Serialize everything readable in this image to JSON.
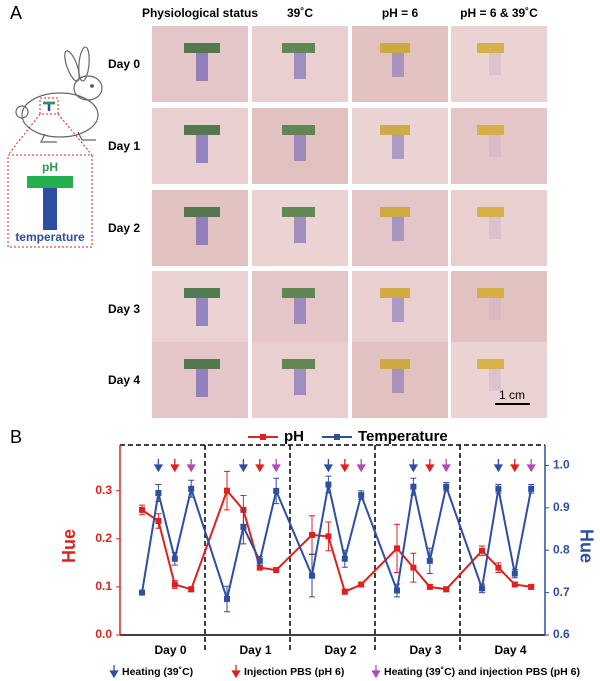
{
  "panel_a": {
    "label": "A",
    "columns": [
      "Physiological status",
      "39˚C",
      "pH = 6",
      "pH = 6 & 39˚C"
    ],
    "rows": [
      "Day 0",
      "Day 1",
      "Day 2",
      "Day 3",
      "Day 4"
    ],
    "scale_bar": "1 cm",
    "sensor_labels": {
      "ph": "pH",
      "temperature": "temperature"
    }
  },
  "chart_data": {
    "type": "line",
    "label": "B",
    "groups": [
      "Day 0",
      "Day 1",
      "Day 2",
      "Day 3",
      "Day 4"
    ],
    "series": [
      {
        "name": "pH",
        "color": "#e02020",
        "axis": "y",
        "values": [
          0.26,
          0.237,
          0.105,
          0.095,
          0.3,
          0.26,
          0.14,
          0.135,
          0.208,
          0.205,
          0.09,
          0.105,
          0.18,
          0.14,
          0.1,
          0.095,
          0.175,
          0.14,
          0.105,
          0.1
        ],
        "errors": [
          0.01,
          0.015,
          0.008,
          0.005,
          0.04,
          0.03,
          0.005,
          0.005,
          0.04,
          0.03,
          0.005,
          0.005,
          0.05,
          0.03,
          0.005,
          0.005,
          0.01,
          0.01,
          0.005,
          0.005
        ]
      },
      {
        "name": "Temperature",
        "color": "#2e4ea0",
        "axis": "y2",
        "values": [
          0.7,
          0.935,
          0.78,
          0.945,
          0.685,
          0.855,
          0.775,
          0.94,
          0.74,
          0.955,
          0.78,
          0.93,
          0.705,
          0.95,
          0.775,
          0.95,
          0.71,
          0.945,
          0.745,
          0.945
        ],
        "errors": [
          0.005,
          0.02,
          0.015,
          0.02,
          0.03,
          0.04,
          0.01,
          0.03,
          0.05,
          0.02,
          0.02,
          0.01,
          0.015,
          0.02,
          0.03,
          0.01,
          0.01,
          0.01,
          0.01,
          0.01
        ]
      }
    ],
    "ylabel": "Hue",
    "y2label": "Hue",
    "ylim": [
      0,
      0.37
    ],
    "yticks": [
      {
        "value": 0,
        "label": "0.0"
      },
      0.1,
      0.2,
      0.3
    ],
    "y2lim": [
      0.6,
      1.02
    ],
    "y2ticks": [
      0.6,
      0.7,
      0.8,
      0.9,
      {
        "value": 1,
        "label": "1.0"
      }
    ],
    "arrow_legend": [
      {
        "label": "Heating (39˚C)",
        "color": "#2e4ea0"
      },
      {
        "label": "Injection PBS (pH 6)",
        "color": "#e02020"
      },
      {
        "label": "Heating (39˚C) and injection PBS (pH 6)",
        "color": "#b04ab8"
      }
    ]
  }
}
